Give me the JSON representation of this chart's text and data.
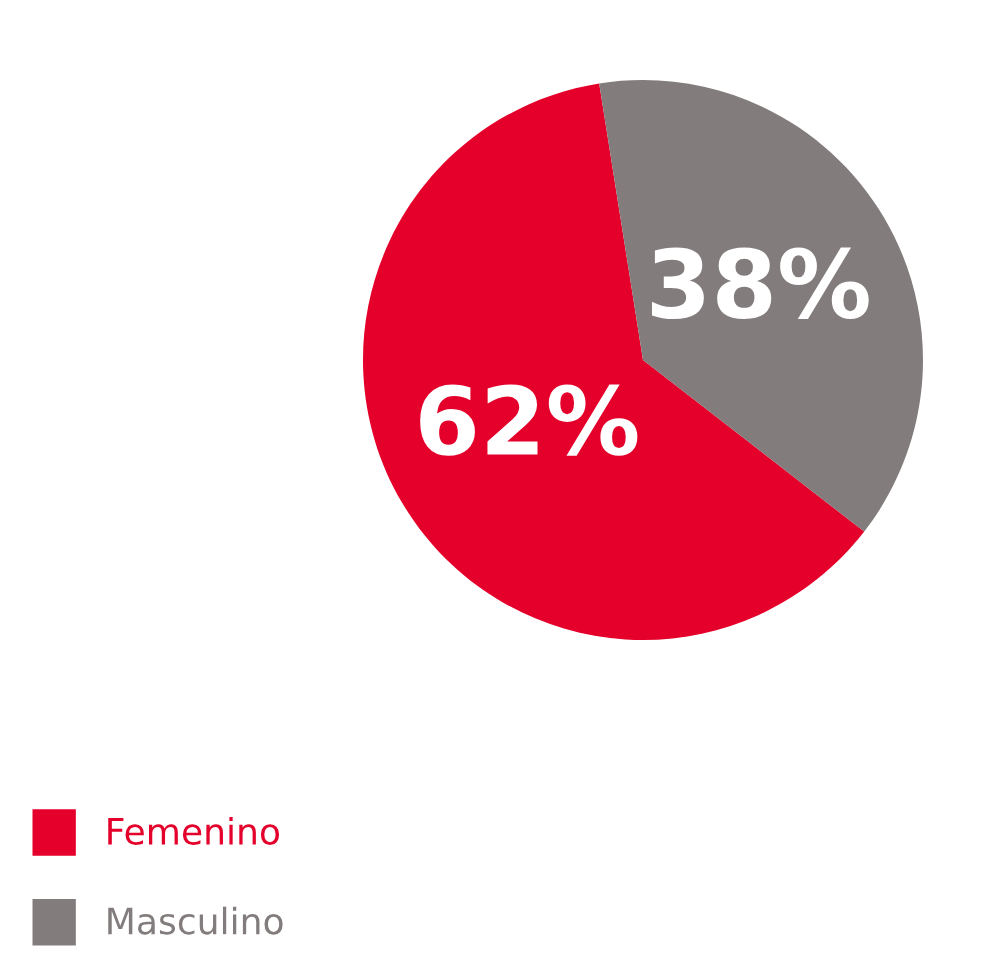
{
  "chart_data": {
    "type": "pie",
    "categories": [
      "Femenino",
      "Masculino"
    ],
    "values": [
      62,
      38
    ],
    "colors": [
      "#e4002b",
      "#837c7c"
    ],
    "value_labels": [
      "62%",
      "38%"
    ],
    "legend": "bottom left"
  }
}
